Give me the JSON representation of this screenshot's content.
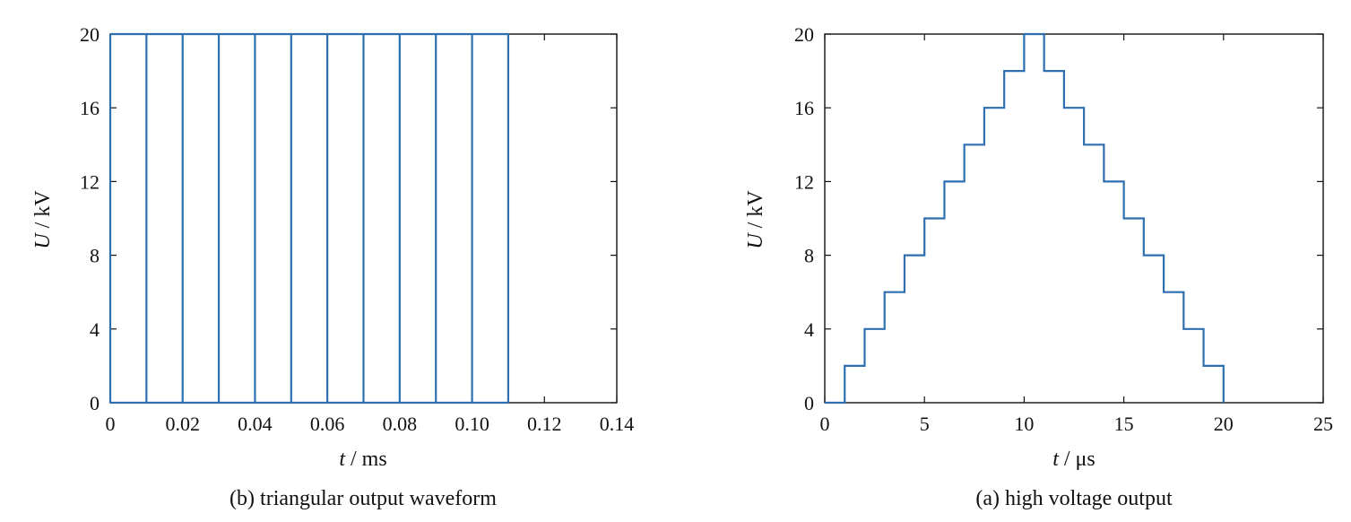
{
  "chart_data": [
    {
      "type": "line",
      "caption": "(b) triangular output waveform",
      "xlabel_var": "t",
      "xlabel_unit": " / ms",
      "ylabel_var": "U",
      "ylabel_unit": " / kV",
      "xlim": [
        0,
        0.14
      ],
      "ylim": [
        0,
        20
      ],
      "xticks": [
        "0",
        "0.02",
        "0.04",
        "0.06",
        "0.08",
        "0.10",
        "0.12",
        "0.14"
      ],
      "xtick_values": [
        0,
        0.02,
        0.04,
        0.06,
        0.08,
        0.1,
        0.12,
        0.14
      ],
      "yticks": [
        "0",
        "4",
        "8",
        "12",
        "16",
        "20"
      ],
      "ytick_values": [
        0,
        4,
        8,
        12,
        16,
        20
      ],
      "grid": false,
      "series": [
        {
          "color": "#2e6fb0",
          "description_points": "vertical spikes 0 to 20 kV at each pulse start",
          "x": [
            0,
            0.01,
            0.02,
            0.03,
            0.04,
            0.05,
            0.06,
            0.07,
            0.08,
            0.09,
            0.1,
            0.11
          ],
          "y_low": 0,
          "y_high": 20
        }
      ]
    },
    {
      "type": "line",
      "caption": "(a) high voltage output",
      "xlabel_var": "t",
      "xlabel_unit": " / μs",
      "ylabel_var": "U",
      "ylabel_unit": " / kV",
      "xlim": [
        0,
        25
      ],
      "ylim": [
        0,
        20
      ],
      "xticks": [
        "0",
        "5",
        "10",
        "15",
        "20",
        "25"
      ],
      "xtick_values": [
        0,
        5,
        10,
        15,
        20,
        25
      ],
      "yticks": [
        "0",
        "4",
        "8",
        "12",
        "16",
        "20"
      ],
      "ytick_values": [
        0,
        4,
        8,
        12,
        16,
        20
      ],
      "grid": false,
      "series": [
        {
          "color": "#2e6fb0",
          "x": [
            0,
            1,
            1,
            2,
            2,
            3,
            3,
            4,
            4,
            5,
            5,
            6,
            6,
            7,
            7,
            8,
            8,
            9,
            9,
            10,
            10,
            11,
            11,
            12,
            12,
            13,
            13,
            14,
            14,
            15,
            15,
            16,
            16,
            17,
            17,
            18,
            18,
            19,
            19,
            20,
            20
          ],
          "y": [
            0,
            0,
            2,
            2,
            4,
            4,
            6,
            6,
            8,
            8,
            10,
            10,
            12,
            12,
            14,
            14,
            16,
            16,
            18,
            18,
            20,
            20,
            18,
            18,
            16,
            16,
            14,
            14,
            12,
            12,
            10,
            10,
            8,
            8,
            6,
            6,
            4,
            4,
            2,
            2,
            0
          ]
        }
      ]
    }
  ]
}
